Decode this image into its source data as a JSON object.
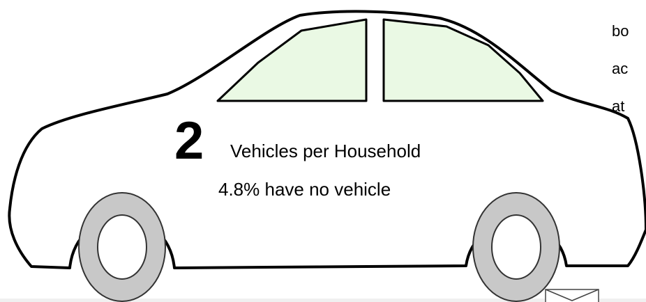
{
  "infographic": {
    "count": "2",
    "label": "Vehicles per Household",
    "note": "4.8% have no vehicle"
  },
  "side_text": {
    "lines": [
      "bo",
      "ac",
      "at"
    ]
  }
}
